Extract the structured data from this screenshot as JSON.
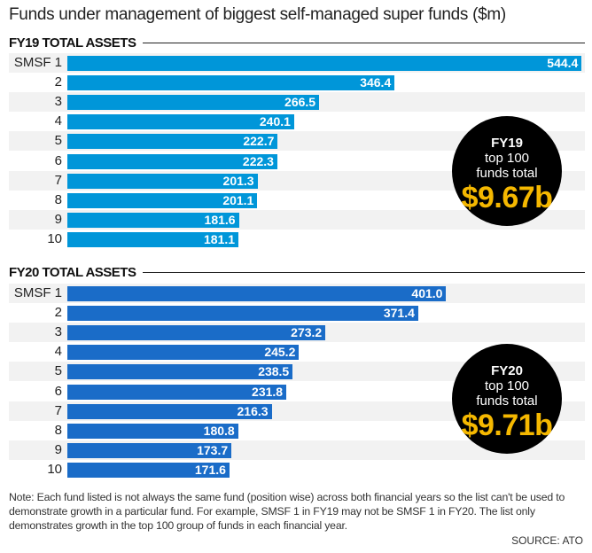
{
  "chart_data": [
    {
      "type": "bar",
      "orientation": "horizontal",
      "title": "FY19 TOTAL ASSETS",
      "categories": [
        "SMSF 1",
        "2",
        "3",
        "4",
        "5",
        "6",
        "7",
        "8",
        "9",
        "10"
      ],
      "values": [
        544.4,
        346.4,
        266.5,
        240.1,
        222.7,
        222.3,
        201.3,
        201.1,
        181.6,
        181.1
      ],
      "color": "#0096d9",
      "callout": {
        "line1": "FY19",
        "line2": "top 100",
        "line3": "funds total",
        "value": "$9.67b"
      }
    },
    {
      "type": "bar",
      "orientation": "horizontal",
      "title": "FY20 TOTAL ASSETS",
      "categories": [
        "SMSF 1",
        "2",
        "3",
        "4",
        "5",
        "6",
        "7",
        "8",
        "9",
        "10"
      ],
      "values": [
        401.0,
        371.4,
        273.2,
        245.2,
        238.5,
        231.8,
        216.3,
        180.8,
        173.7,
        171.6
      ],
      "color": "#1a6cc8",
      "callout": {
        "line1": "FY20",
        "line2": "top 100",
        "line3": "funds total",
        "value": "$9.71b"
      }
    }
  ],
  "title": "Funds under management of biggest self-managed super funds ($m)",
  "note": "Note: Each fund listed is not always the same fund (position wise) across both financial years so the list can't be used to demonstrate growth in a particular fund. For example, SMSF 1 in FY19 may not be SMSF 1 in FY20. The list only demonstrates growth in the top 100 group of funds in each financial year.",
  "source": "SOURCE: ATO",
  "colors": {
    "callout_bg": "#000000",
    "callout_value": "#f5b800",
    "row_alt": "#f2f2f2"
  }
}
